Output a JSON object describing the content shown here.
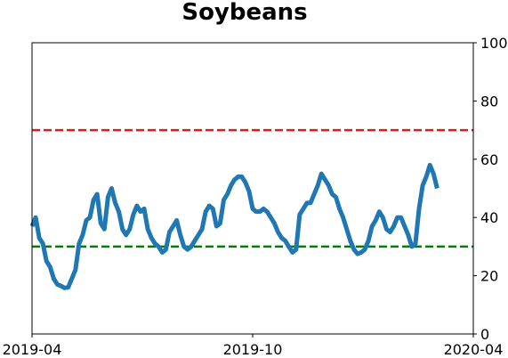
{
  "chart_data": {
    "type": "line",
    "title": "Soybeans",
    "xlabel": "",
    "ylabel": "",
    "x_range": [
      "2019-04-01",
      "2020-04-01"
    ],
    "x_ticks": [
      {
        "date": "2019-04-01",
        "label": "2019-04"
      },
      {
        "date": "2019-10-01",
        "label": "2019-10"
      },
      {
        "date": "2020-04-01",
        "label": "2020-04"
      }
    ],
    "ylim": [
      0,
      100
    ],
    "y_ticks": [
      "0",
      "20",
      "40",
      "60",
      "80",
      "100"
    ],
    "y_axis_side": "right",
    "grid": false,
    "legend": "none",
    "reference_lines": [
      {
        "y": 70,
        "color": "#e31a1c",
        "style": "dashed"
      },
      {
        "y": 30,
        "color": "#008000",
        "style": "dashed"
      }
    ],
    "series": [
      {
        "color": "#1f77b4",
        "points": [
          [
            "2019-04-01",
            37
          ],
          [
            "2019-04-04",
            40
          ],
          [
            "2019-04-07",
            33
          ],
          [
            "2019-04-10",
            31
          ],
          [
            "2019-04-13",
            25
          ],
          [
            "2019-04-16",
            23
          ],
          [
            "2019-04-19",
            19
          ],
          [
            "2019-04-22",
            17
          ],
          [
            "2019-04-25",
            16.5
          ],
          [
            "2019-04-28",
            15.8
          ],
          [
            "2019-05-01",
            16
          ],
          [
            "2019-05-04",
            19
          ],
          [
            "2019-05-07",
            22
          ],
          [
            "2019-05-10",
            31
          ],
          [
            "2019-05-13",
            34
          ],
          [
            "2019-05-16",
            39
          ],
          [
            "2019-05-19",
            40
          ],
          [
            "2019-05-22",
            46
          ],
          [
            "2019-05-25",
            48
          ],
          [
            "2019-05-28",
            38
          ],
          [
            "2019-05-31",
            36
          ],
          [
            "2019-06-03",
            47
          ],
          [
            "2019-06-06",
            50
          ],
          [
            "2019-06-09",
            45
          ],
          [
            "2019-06-12",
            42
          ],
          [
            "2019-06-15",
            36
          ],
          [
            "2019-06-18",
            34
          ],
          [
            "2019-06-21",
            36
          ],
          [
            "2019-06-24",
            41
          ],
          [
            "2019-06-27",
            44
          ],
          [
            "2019-06-30",
            42
          ],
          [
            "2019-07-03",
            43
          ],
          [
            "2019-07-06",
            36
          ],
          [
            "2019-07-09",
            33
          ],
          [
            "2019-07-12",
            31
          ],
          [
            "2019-07-15",
            30
          ],
          [
            "2019-07-18",
            28
          ],
          [
            "2019-07-21",
            29
          ],
          [
            "2019-07-24",
            35
          ],
          [
            "2019-07-27",
            37
          ],
          [
            "2019-07-30",
            39
          ],
          [
            "2019-08-02",
            34
          ],
          [
            "2019-08-05",
            30
          ],
          [
            "2019-08-08",
            29
          ],
          [
            "2019-08-11",
            30
          ],
          [
            "2019-08-14",
            32
          ],
          [
            "2019-08-17",
            34
          ],
          [
            "2019-08-20",
            36
          ],
          [
            "2019-08-23",
            42
          ],
          [
            "2019-08-26",
            44
          ],
          [
            "2019-08-29",
            43
          ],
          [
            "2019-09-01",
            37
          ],
          [
            "2019-09-04",
            38
          ],
          [
            "2019-09-07",
            46
          ],
          [
            "2019-09-10",
            48
          ],
          [
            "2019-09-13",
            51
          ],
          [
            "2019-09-16",
            53
          ],
          [
            "2019-09-19",
            54
          ],
          [
            "2019-09-22",
            54
          ],
          [
            "2019-09-25",
            52
          ],
          [
            "2019-09-28",
            49
          ],
          [
            "2019-10-01",
            43
          ],
          [
            "2019-10-04",
            42
          ],
          [
            "2019-10-07",
            42
          ],
          [
            "2019-10-10",
            43
          ],
          [
            "2019-10-13",
            42
          ],
          [
            "2019-10-16",
            40
          ],
          [
            "2019-10-19",
            38
          ],
          [
            "2019-10-22",
            35
          ],
          [
            "2019-10-25",
            33
          ],
          [
            "2019-10-28",
            32
          ],
          [
            "2019-10-31",
            30
          ],
          [
            "2019-11-03",
            28
          ],
          [
            "2019-11-06",
            29
          ],
          [
            "2019-11-09",
            41
          ],
          [
            "2019-11-12",
            43
          ],
          [
            "2019-11-15",
            45
          ],
          [
            "2019-11-18",
            45
          ],
          [
            "2019-11-21",
            48
          ],
          [
            "2019-11-24",
            51
          ],
          [
            "2019-11-27",
            55
          ],
          [
            "2019-11-30",
            53
          ],
          [
            "2019-12-03",
            51
          ],
          [
            "2019-12-06",
            48
          ],
          [
            "2019-12-09",
            47
          ],
          [
            "2019-12-12",
            43
          ],
          [
            "2019-12-15",
            40
          ],
          [
            "2019-12-18",
            36
          ],
          [
            "2019-12-21",
            32
          ],
          [
            "2019-12-24",
            29
          ],
          [
            "2019-12-27",
            27.5
          ],
          [
            "2019-12-30",
            28
          ],
          [
            "2020-01-02",
            29
          ],
          [
            "2020-01-05",
            32
          ],
          [
            "2020-01-08",
            37
          ],
          [
            "2020-01-11",
            39
          ],
          [
            "2020-01-14",
            42
          ],
          [
            "2020-01-17",
            40
          ],
          [
            "2020-01-20",
            36
          ],
          [
            "2020-01-23",
            35
          ],
          [
            "2020-01-26",
            37
          ],
          [
            "2020-01-29",
            40
          ],
          [
            "2020-02-01",
            40
          ],
          [
            "2020-02-04",
            37
          ],
          [
            "2020-02-07",
            34
          ],
          [
            "2020-02-10",
            30
          ],
          [
            "2020-02-13",
            31
          ],
          [
            "2020-02-16",
            43
          ],
          [
            "2020-02-19",
            51
          ],
          [
            "2020-02-22",
            54
          ],
          [
            "2020-02-25",
            58
          ],
          [
            "2020-02-28",
            55
          ],
          [
            "2020-03-02",
            50
          ]
        ]
      }
    ]
  }
}
